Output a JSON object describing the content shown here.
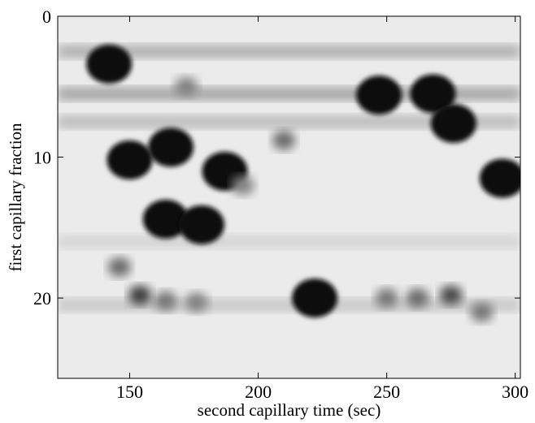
{
  "chart_data": {
    "type": "heatmap",
    "xlabel": "second capillary time (sec)",
    "ylabel": "first capillary fraction",
    "xlim": [
      122,
      302
    ],
    "ylim": [
      25.7,
      0
    ],
    "x_ticks": [
      150,
      200,
      250,
      300
    ],
    "y_ticks": [
      0,
      10,
      20
    ],
    "colormap": "grayscale (white = low, black = high)",
    "spots": [
      {
        "x": 142,
        "y": 3.4,
        "intensity": 1.0
      },
      {
        "x": 150,
        "y": 10.2,
        "intensity": 1.0
      },
      {
        "x": 166,
        "y": 9.3,
        "intensity": 1.0
      },
      {
        "x": 187,
        "y": 11.0,
        "intensity": 1.0
      },
      {
        "x": 164,
        "y": 14.4,
        "intensity": 0.95
      },
      {
        "x": 178,
        "y": 14.8,
        "intensity": 0.9
      },
      {
        "x": 222,
        "y": 20.0,
        "intensity": 1.0
      },
      {
        "x": 247,
        "y": 5.6,
        "intensity": 0.9
      },
      {
        "x": 268,
        "y": 5.5,
        "intensity": 0.95
      },
      {
        "x": 276,
        "y": 7.6,
        "intensity": 0.9
      },
      {
        "x": 295,
        "y": 11.5,
        "intensity": 1.0
      },
      {
        "x": 154,
        "y": 19.8,
        "intensity": 0.75
      },
      {
        "x": 164,
        "y": 20.2,
        "intensity": 0.5
      },
      {
        "x": 176,
        "y": 20.3,
        "intensity": 0.45
      },
      {
        "x": 250,
        "y": 20.0,
        "intensity": 0.5
      },
      {
        "x": 262,
        "y": 20.0,
        "intensity": 0.55
      },
      {
        "x": 275,
        "y": 19.8,
        "intensity": 0.7
      },
      {
        "x": 287,
        "y": 21.0,
        "intensity": 0.5
      },
      {
        "x": 146,
        "y": 17.8,
        "intensity": 0.55
      },
      {
        "x": 210,
        "y": 8.8,
        "intensity": 0.55
      },
      {
        "x": 172,
        "y": 5.0,
        "intensity": 0.45
      },
      {
        "x": 194,
        "y": 12.0,
        "intensity": 0.45
      }
    ],
    "bands": [
      {
        "y": 2.5,
        "intensity": 0.25
      },
      {
        "y": 5.5,
        "intensity": 0.3
      },
      {
        "y": 7.5,
        "intensity": 0.2
      },
      {
        "y": 16.0,
        "intensity": 0.1
      },
      {
        "y": 20.5,
        "intensity": 0.15
      }
    ]
  }
}
